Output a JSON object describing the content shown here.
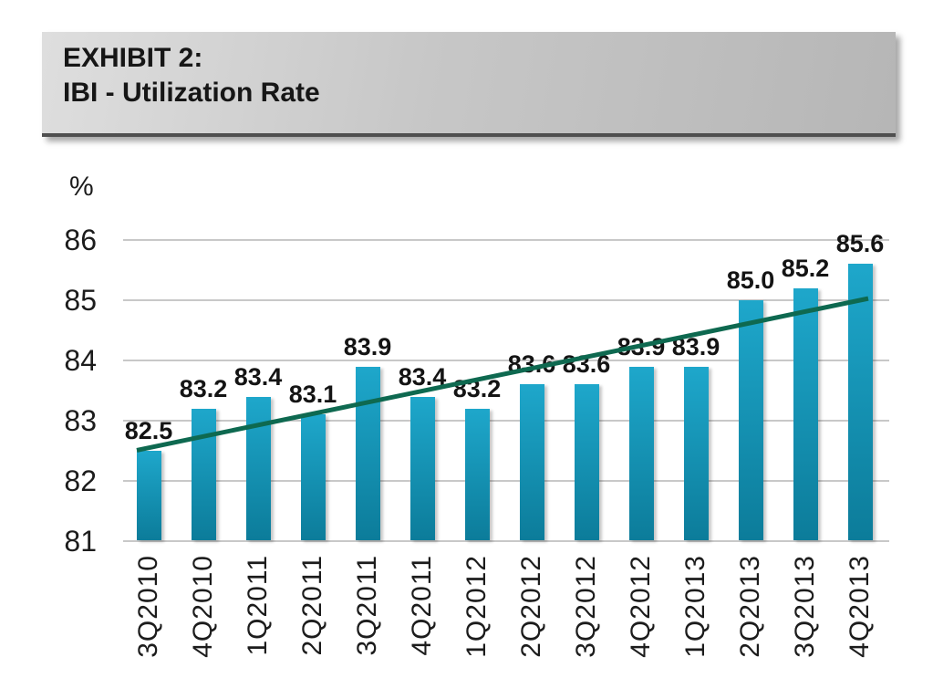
{
  "header": {
    "title_line1": "EXHIBIT 2:",
    "title_line2": "IBI - Utilization Rate"
  },
  "chart_data": {
    "type": "bar",
    "title": "IBI - Utilization Rate",
    "y_unit_label": "%",
    "categories": [
      "3Q2010",
      "4Q2010",
      "1Q2011",
      "2Q2011",
      "3Q2011",
      "4Q2011",
      "1Q2012",
      "2Q2012",
      "3Q2012",
      "4Q2012",
      "1Q2013",
      "2Q2013",
      "3Q2013",
      "4Q2013"
    ],
    "values": [
      82.5,
      83.2,
      83.4,
      83.1,
      83.9,
      83.4,
      83.2,
      83.6,
      83.6,
      83.9,
      83.9,
      85.0,
      85.2,
      85.6
    ],
    "value_labels": [
      "82.5",
      "83.2",
      "83.4",
      "83.1",
      "83.9",
      "83.4",
      "83.2",
      "83.6",
      "83.6",
      "83.9",
      "83.9",
      "85.0",
      "85.2",
      "85.6"
    ],
    "xlabel": "",
    "ylabel": "%",
    "ylim": [
      81,
      86
    ],
    "yticks": [
      81,
      82,
      83,
      84,
      85,
      86
    ],
    "grid": true,
    "legend": "none",
    "x_tick_rotation": -90,
    "trendline": {
      "type": "linear",
      "start_value": 82.55,
      "end_value": 85.0
    },
    "colors": {
      "bar_top": "#1ea7cb",
      "bar_bottom": "#0c7c9a",
      "trend": "#0e6950",
      "gridline": "#c8c8c8",
      "text": "#1c1c1c"
    }
  }
}
